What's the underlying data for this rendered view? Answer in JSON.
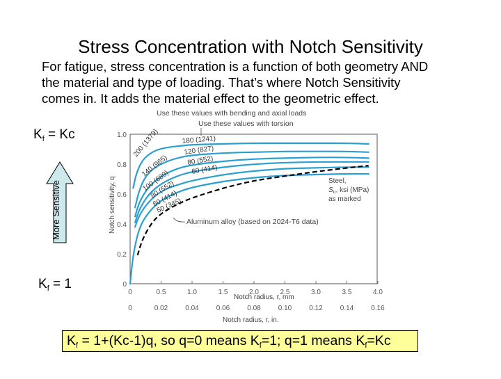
{
  "slide": {
    "title": "Stress Concentration with Notch Sensitivity",
    "intro_lines": [
      "For fatigue, stress concentration is a function of both geometry AND",
      "the material and type of loading.  That’s where Notch Sensitivity",
      "comes in.  It adds the material effect to the geometric effect."
    ],
    "kf_top": {
      "k": "K",
      "sub": "f",
      "rest": " = Kc"
    },
    "kf_bottom": {
      "k": "K",
      "sub": "f",
      "rest": " = 1"
    },
    "arrow_label": "More Sensitive",
    "arrow_fill": "#cde9ec",
    "formula": {
      "parts": [
        "K",
        "f",
        " = 1+(Kc-1)q, so q=0 means K",
        "f",
        "=1;  q=1 means K",
        "f",
        "=Kc"
      ],
      "background": "#ffff99"
    }
  },
  "chart_data": {
    "type": "line",
    "title": "",
    "xlabel": "Notch radius, r, mm",
    "xlabel_secondary": "Notch radius, r, in.",
    "ylabel": "Notch sensitivity, q",
    "xlim": [
      0,
      4.0
    ],
    "ylim": [
      0,
      1.0
    ],
    "x_ticks": [
      "0",
      "0.5",
      "1.0",
      "1.5",
      "2.0",
      "2.5",
      "3.0",
      "3.5",
      "4.0"
    ],
    "x_ticks_secondary": [
      "0",
      "0.02",
      "0.04",
      "0.06",
      "0.08",
      "0.10",
      "0.12",
      "0.14",
      "0.16"
    ],
    "y_ticks": [
      "0",
      "0.2",
      "0.4",
      "0.6",
      "0.8",
      "1.0"
    ],
    "grid": false,
    "series_color": "#2a9fd0",
    "annotations": {
      "bending": "Use these values with bending and axial loads",
      "torsion": "Use these values with torsion",
      "steel_line1": "Steel,",
      "steel_line2_sym": "S",
      "steel_line2_sub": "u",
      "steel_line2_rest": ", ksi (MPa)",
      "steel_line3": "as marked",
      "aluminum": "Aluminum alloy (based on 2024-T6 data)"
    },
    "series": [
      {
        "name": "Steel 200 (1379) bending / 180 (1241) torsion",
        "bending_label": "200 (1379)",
        "torsion_label": "180 (1241)",
        "x": [
          0.05,
          0.1,
          0.2,
          0.35,
          0.5,
          0.75,
          1.0,
          1.5,
          2.0,
          2.5,
          3.0,
          3.5,
          3.85
        ],
        "y": [
          0.64,
          0.74,
          0.83,
          0.88,
          0.905,
          0.92,
          0.93,
          0.935,
          0.94,
          0.94,
          0.94,
          0.94,
          0.935
        ]
      },
      {
        "name": "Steel 140 (965) bending / 120 (827) torsion",
        "bending_label": "140 (965)",
        "torsion_label": "120 (827)",
        "x": [
          0.08,
          0.15,
          0.25,
          0.4,
          0.6,
          0.8,
          1.0,
          1.5,
          2.0,
          2.5,
          3.0,
          3.5,
          3.85
        ],
        "y": [
          0.51,
          0.63,
          0.72,
          0.78,
          0.82,
          0.845,
          0.86,
          0.875,
          0.88,
          0.885,
          0.885,
          0.885,
          0.88
        ]
      },
      {
        "name": "Steel 100 (689) bending / 80 (552) torsion",
        "bending_label": "100 (689)",
        "torsion_label": "80 (552)",
        "x": [
          0.08,
          0.15,
          0.3,
          0.5,
          0.75,
          1.0,
          1.5,
          2.0,
          2.5,
          3.0,
          3.5,
          3.85
        ],
        "y": [
          0.45,
          0.55,
          0.65,
          0.72,
          0.77,
          0.795,
          0.82,
          0.835,
          0.84,
          0.845,
          0.845,
          0.84
        ]
      },
      {
        "name": "Steel 80 (552) bending / 60 (414) torsion",
        "bending_label": "80 (552)",
        "torsion_label": "60 (414)",
        "x": [
          0.08,
          0.15,
          0.3,
          0.5,
          0.75,
          1.0,
          1.5,
          2.0,
          2.5,
          3.0,
          3.5,
          3.85
        ],
        "y": [
          0.41,
          0.5,
          0.6,
          0.67,
          0.72,
          0.75,
          0.78,
          0.8,
          0.81,
          0.815,
          0.815,
          0.815
        ]
      },
      {
        "name": "Steel 60 (414) bending",
        "bending_label": "60 (414)",
        "torsion_label": "",
        "x": [
          0.08,
          0.15,
          0.3,
          0.5,
          0.75,
          1.0,
          1.5,
          2.0,
          2.5,
          3.0,
          3.5,
          3.85
        ],
        "y": [
          0.38,
          0.46,
          0.55,
          0.62,
          0.66,
          0.69,
          0.73,
          0.755,
          0.77,
          0.775,
          0.78,
          0.78
        ]
      },
      {
        "name": "Steel 50 (345) bending",
        "bending_label": "50 (345)",
        "torsion_label": "",
        "x": [
          0.0,
          0.05,
          0.15,
          0.3,
          0.5,
          0.75,
          1.0,
          1.5,
          2.0,
          2.5,
          3.0,
          3.5,
          3.85
        ],
        "y": [
          0.0,
          0.2,
          0.38,
          0.48,
          0.56,
          0.61,
          0.645,
          0.685,
          0.71,
          0.725,
          0.73,
          0.735,
          0.735
        ]
      },
      {
        "name": "Aluminum alloy (2024-T6)",
        "dashed": true,
        "color": "#000000",
        "x": [
          0.12,
          0.2,
          0.35,
          0.5,
          0.75,
          1.0,
          1.5,
          2.0,
          2.5,
          3.0,
          3.5,
          3.85
        ],
        "y": [
          0.19,
          0.3,
          0.41,
          0.47,
          0.53,
          0.575,
          0.64,
          0.69,
          0.72,
          0.75,
          0.775,
          0.79
        ]
      }
    ]
  }
}
